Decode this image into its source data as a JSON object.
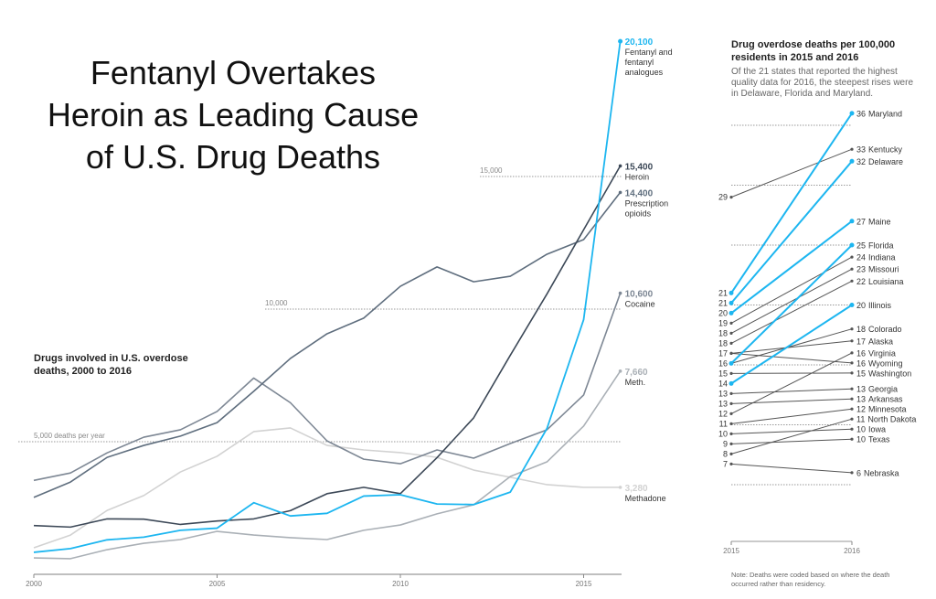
{
  "title_lines": [
    "Fentanyl Overtakes",
    "Heroin as Leading Cause",
    "of U.S. Drug Deaths"
  ],
  "chart_data": [
    {
      "type": "line",
      "title_lines": [
        "Drugs involved in U.S. overdose",
        "deaths, 2000 to 2016"
      ],
      "x": [
        2000,
        2001,
        2002,
        2003,
        2004,
        2005,
        2006,
        2007,
        2008,
        2009,
        2010,
        2011,
        2012,
        2013,
        2014,
        2015,
        2016
      ],
      "xlim": [
        2000,
        2016
      ],
      "ylim": [
        0,
        21000
      ],
      "x_ticks": [
        "2000",
        "2005",
        "2010",
        "2015"
      ],
      "gridlines": [
        {
          "value": 5000,
          "label": "5,000 deaths per year"
        },
        {
          "value": 10000,
          "label": "10,000"
        },
        {
          "value": 15000,
          "label": "15,000"
        }
      ],
      "series": [
        {
          "name": "Methadone",
          "name_lines": [
            "Methadone"
          ],
          "end_label": "3,280",
          "color": "#d2d2d2",
          "values": [
            1000,
            1480,
            2410,
            2970,
            3860,
            4450,
            5380,
            5520,
            4860,
            4690,
            4590,
            4410,
            3930,
            3660,
            3380,
            3280,
            3280
          ]
        },
        {
          "name": "Meth.",
          "name_lines": [
            "Meth."
          ],
          "end_label": "7,660",
          "color": "#aab0b6",
          "values": [
            620,
            590,
            930,
            1170,
            1310,
            1620,
            1480,
            1380,
            1310,
            1660,
            1860,
            2280,
            2620,
            3690,
            4240,
            5590,
            7660
          ]
        },
        {
          "name": "Cocaine",
          "name_lines": [
            "Cocaine"
          ],
          "end_label": "10,600",
          "color": "#7d8794",
          "values": [
            3540,
            3820,
            4580,
            5170,
            5450,
            6140,
            7400,
            6470,
            5030,
            4340,
            4170,
            4690,
            4380,
            4930,
            5450,
            6760,
            10600
          ]
        },
        {
          "name": "Prescription opioids",
          "name_lines": [
            "Prescription",
            "opioids"
          ],
          "end_label": "14,400",
          "color": "#5f6e7e",
          "values": [
            2900,
            3480,
            4410,
            4860,
            5210,
            5720,
            6900,
            8140,
            9070,
            9660,
            10860,
            11590,
            11030,
            11240,
            12070,
            12620,
            14400
          ]
        },
        {
          "name": "Heroin",
          "name_lines": [
            "Heroin"
          ],
          "end_label": "15,400",
          "color": "#3c4857",
          "values": [
            1840,
            1780,
            2090,
            2080,
            1880,
            2010,
            2090,
            2400,
            3040,
            3280,
            3040,
            4400,
            5900,
            8260,
            10570,
            12990,
            15400
          ]
        },
        {
          "name": "Fentanyl and fentanyl analogues",
          "name_lines": [
            "Fentanyl and",
            "fentanyl",
            "analogues"
          ],
          "end_label": "20,100",
          "color": "#1db6f0",
          "values": [
            830,
            970,
            1300,
            1400,
            1660,
            1740,
            2700,
            2200,
            2300,
            2950,
            3000,
            2650,
            2630,
            3100,
            5500,
            9600,
            20100
          ]
        }
      ]
    },
    {
      "type": "slope",
      "title_lines": [
        "Drug overdose deaths per 100,000",
        "residents in 2015 and 2016"
      ],
      "description_lines": [
        "Of the 21 states that reported the highest",
        "quality data for 2016, the steepest rises were",
        "in Delaware, Florida and Maryland."
      ],
      "x_ticks": [
        "2015",
        "2016"
      ],
      "ylim": [
        5,
        36
      ],
      "gridlines": [
        5,
        10,
        15,
        20,
        25,
        30,
        35
      ],
      "highlight_color": "#1db6f0",
      "base_color": "#555555",
      "series": [
        {
          "name": "Maryland",
          "start": 21,
          "end": 36,
          "highlight": true,
          "show_start": true
        },
        {
          "name": "Kentucky",
          "start": 29,
          "end": 33,
          "highlight": false,
          "show_start": true
        },
        {
          "name": "Delaware",
          "start": 21,
          "end": 32,
          "highlight": true,
          "show_start": true
        },
        {
          "name": "Maine",
          "start": 20,
          "end": 27,
          "highlight": true,
          "show_start": true
        },
        {
          "name": "Florida",
          "start": 16,
          "end": 25,
          "highlight": true,
          "show_start": true
        },
        {
          "name": "Indiana",
          "start": 19,
          "end": 24,
          "highlight": false,
          "show_start": true
        },
        {
          "name": "Missouri",
          "start": 18,
          "end": 23,
          "highlight": false,
          "show_start": true
        },
        {
          "name": "Louisiana",
          "start": 18,
          "end": 22,
          "highlight": false,
          "show_start": true
        },
        {
          "name": "Illinois",
          "start": 14,
          "end": 20,
          "highlight": true,
          "show_start": true
        },
        {
          "name": "Colorado",
          "start": 16,
          "end": 18,
          "highlight": false,
          "show_start": false
        },
        {
          "name": "Alaska",
          "start": 17,
          "end": 17,
          "highlight": false,
          "show_start": true
        },
        {
          "name": "Virginia",
          "start": 12,
          "end": 16,
          "highlight": false,
          "show_start": true
        },
        {
          "name": "Wyoming",
          "start": 17,
          "end": 16,
          "highlight": false,
          "show_start": false
        },
        {
          "name": "Washington",
          "start": 15,
          "end": 15,
          "highlight": false,
          "show_start": true
        },
        {
          "name": "Georgia",
          "start": 13,
          "end": 13,
          "highlight": false,
          "show_start": true
        },
        {
          "name": "Arkansas",
          "start": 13,
          "end": 13,
          "highlight": false,
          "show_start": true
        },
        {
          "name": "Minnesota",
          "start": 11,
          "end": 12,
          "highlight": false,
          "show_start": true
        },
        {
          "name": "North Dakota",
          "start": 8,
          "end": 11,
          "highlight": false,
          "show_start": true
        },
        {
          "name": "Iowa",
          "start": 10,
          "end": 10,
          "highlight": false,
          "show_start": true
        },
        {
          "name": "Texas",
          "start": 9,
          "end": 10,
          "highlight": false,
          "show_start": true
        },
        {
          "name": "Nebraska",
          "start": 7,
          "end": 6,
          "highlight": false,
          "show_start": true
        }
      ],
      "note_lines": [
        "Note: Deaths were coded based on where the death",
        "occurred rather than residency."
      ]
    }
  ]
}
